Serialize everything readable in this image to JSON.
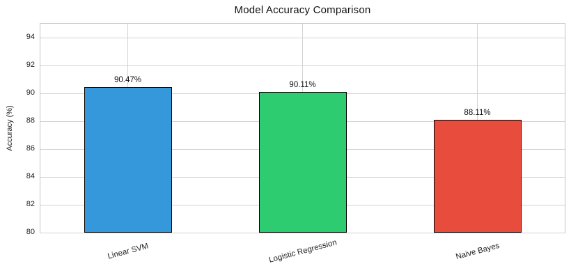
{
  "chart_data": {
    "type": "bar",
    "title": "Model Accuracy Comparison",
    "xlabel": "",
    "ylabel": "Accuracy (%)",
    "categories": [
      "Linear SVM",
      "Logistic Regression",
      "Naive Bayes"
    ],
    "values": [
      90.47,
      90.11,
      88.11
    ],
    "value_labels": [
      "90.47%",
      "90.11%",
      "88.11%"
    ],
    "bar_colors": [
      "#3498db",
      "#2ecc71",
      "#e74c3c"
    ],
    "bar_edge_color": "#000000",
    "ylim": [
      80,
      95
    ],
    "yticks": [
      80,
      82,
      84,
      86,
      88,
      90,
      92,
      94
    ],
    "grid": true,
    "grid_color": "#d2d2d2",
    "background_color": "#ffffff",
    "x_tick_rotation_deg": 15,
    "legend": "none"
  }
}
